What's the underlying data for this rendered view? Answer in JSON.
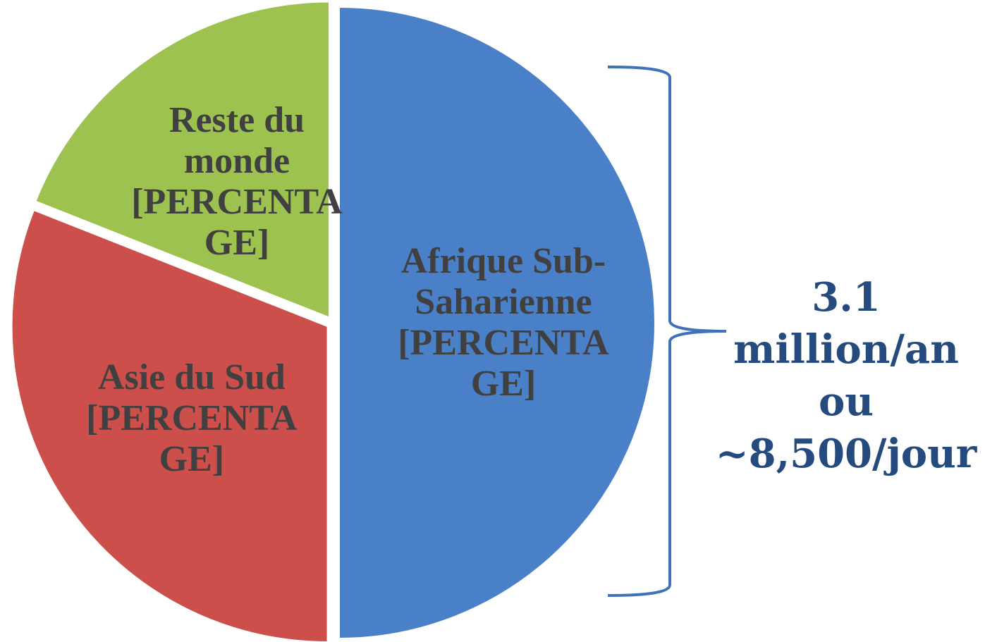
{
  "chart_data": {
    "type": "pie",
    "categories": [
      "Afrique Sub-Saharienne",
      "Asie du Sud",
      "Reste du monde"
    ],
    "values": [
      50,
      31,
      19
    ],
    "value_labels": [
      "[PERCENTAGE]",
      "[PERCENTAGE]",
      "[PERCENTAGE]"
    ],
    "colors": [
      "#4a80c8",
      "#cc4f4b",
      "#9dc24f"
    ],
    "annotation": [
      "3.1",
      "million/an",
      "ou",
      "~8,500/jour"
    ]
  }
}
